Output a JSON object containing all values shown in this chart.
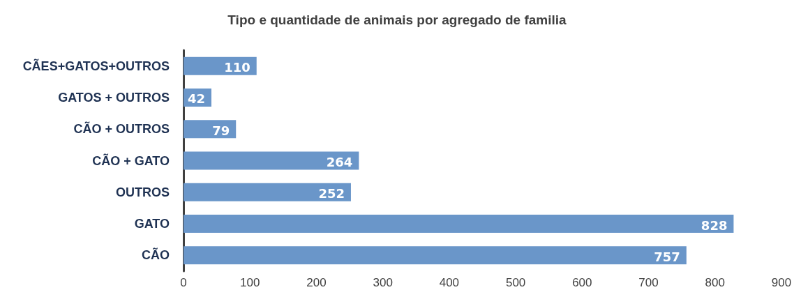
{
  "chart_data": {
    "type": "bar",
    "orientation": "horizontal",
    "title": "Tipo e quantidade de animais por agregado de familia",
    "categories": [
      "CÃES+GATOS+OUTROS",
      "GATOS + OUTROS",
      "CÃO + OUTROS",
      "CÃO + GATO",
      "OUTROS",
      "GATO",
      "CÃO"
    ],
    "values": [
      110,
      42,
      79,
      264,
      252,
      828,
      757
    ],
    "color": "#6a96c9",
    "xlim": [
      0,
      900
    ],
    "xticks": [
      0,
      100,
      200,
      300,
      400,
      500,
      600,
      700,
      800,
      900
    ],
    "data_labels": true
  }
}
